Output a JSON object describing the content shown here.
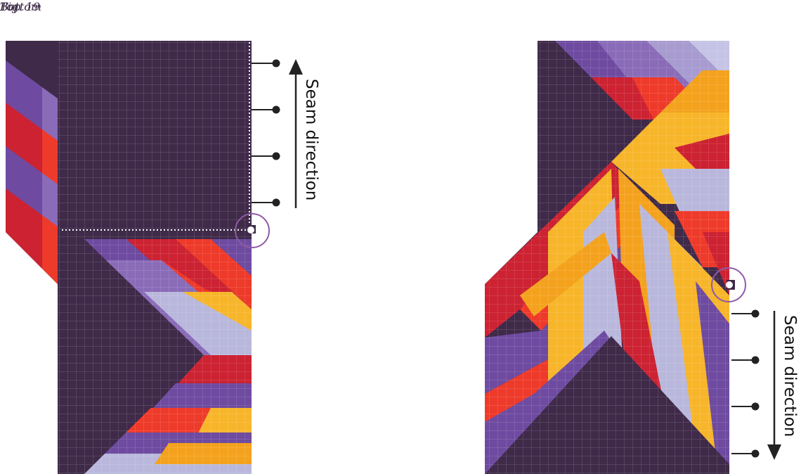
{
  "titles": {
    "top": "Top",
    "bottom": "Bottom"
  },
  "figure_label": "Fig. 19",
  "annotations": {
    "seam_left": "Seam direction",
    "seam_right": "Seam direction"
  },
  "colors": {
    "plum": "#3f2a49",
    "violet": "#6e4ba0",
    "lavender": "#b9b8dc",
    "red": "#cc2232",
    "orange_red": "#ee3a2a",
    "amber": "#f4a21d",
    "gold": "#f7b52a",
    "marker": "#8f5aa7"
  }
}
